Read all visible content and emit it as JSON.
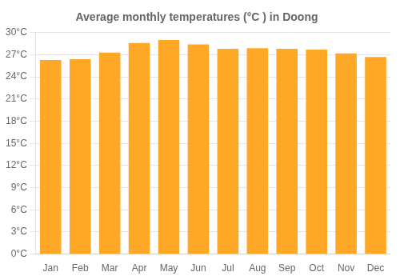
{
  "chart_data": {
    "type": "bar",
    "title": "Average monthly temperatures (°C ) in Doong",
    "categories": [
      "Jan",
      "Feb",
      "Mar",
      "Apr",
      "May",
      "Jun",
      "Jul",
      "Aug",
      "Sep",
      "Oct",
      "Nov",
      "Dec"
    ],
    "values": [
      26.3,
      26.4,
      27.3,
      28.6,
      29.0,
      28.4,
      27.8,
      27.9,
      27.8,
      27.7,
      27.2,
      26.7
    ],
    "color": "#FFA726",
    "ylim": [
      0,
      30
    ],
    "yticks": [
      {
        "value": 0,
        "label": "0°C"
      },
      {
        "value": 3,
        "label": "3°C"
      },
      {
        "value": 6,
        "label": "6°C"
      },
      {
        "value": 9,
        "label": "9°C"
      },
      {
        "value": 12,
        "label": "12°C"
      },
      {
        "value": 15,
        "label": "15°C"
      },
      {
        "value": 18,
        "label": "18°C"
      },
      {
        "value": 21,
        "label": "21°C"
      },
      {
        "value": 24,
        "label": "24°C"
      },
      {
        "value": 27,
        "label": "27°C"
      },
      {
        "value": 30,
        "label": "30°C"
      }
    ],
    "grid": true
  }
}
